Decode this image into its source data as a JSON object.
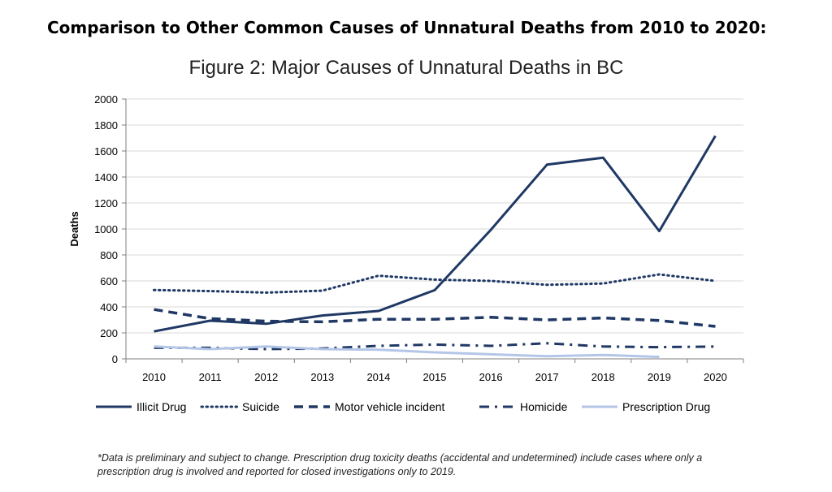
{
  "heading": "Comparison to Other Common Causes of Unnatural Deaths from 2010 to 2020:",
  "chart_data": {
    "type": "line",
    "title": "Figure 2: Major Causes of Unnatural Deaths in BC",
    "xlabel": "",
    "ylabel": "Deaths",
    "ylim": [
      0,
      2000
    ],
    "yticks": [
      0,
      200,
      400,
      600,
      800,
      1000,
      1200,
      1400,
      1600,
      1800,
      2000
    ],
    "categories": [
      "2010",
      "2011",
      "2012",
      "2013",
      "2014",
      "2015",
      "2016",
      "2017",
      "2018",
      "2019",
      "2020"
    ],
    "grid": "horizontal",
    "legend_position": "bottom",
    "series": [
      {
        "name": "Illicit Drug",
        "style": "solid",
        "color": "#1f3864",
        "values": [
          211,
          294,
          270,
          334,
          369,
          529,
          993,
          1495,
          1549,
          984,
          1716
        ]
      },
      {
        "name": "Suicide",
        "style": "dotted",
        "color": "#1f3864",
        "values": [
          530,
          522,
          510,
          525,
          640,
          610,
          600,
          570,
          580,
          650,
          600
        ]
      },
      {
        "name": "Motor vehicle incident",
        "style": "dashed",
        "color": "#1f3864",
        "values": [
          380,
          310,
          290,
          285,
          305,
          305,
          320,
          300,
          315,
          295,
          250
        ]
      },
      {
        "name": "Homicide",
        "style": "dashdot",
        "color": "#1f3864",
        "values": [
          85,
          85,
          75,
          80,
          100,
          110,
          100,
          120,
          95,
          90,
          95
        ]
      },
      {
        "name": "Prescription Drug",
        "style": "solid",
        "color": "#b4c6e7",
        "values": [
          95,
          75,
          95,
          75,
          70,
          50,
          35,
          20,
          30,
          15,
          null
        ]
      }
    ]
  },
  "footnote": {
    "line1": "*Data is preliminary and subject to change. Prescription drug toxicity deaths (accidental and undetermined) include cases where only a",
    "line2": "prescription drug is involved and reported for closed investigations only to 2019."
  }
}
